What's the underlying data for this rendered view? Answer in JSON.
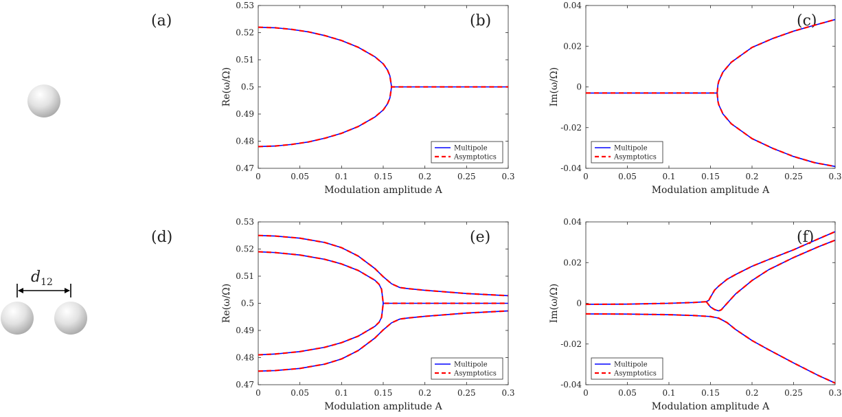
{
  "figure": {
    "panel_labels": {
      "a": "(a)",
      "d": "(d)"
    },
    "separation_label": {
      "main": "d",
      "sub": "12"
    },
    "colors": {
      "multipole": "#0000ff",
      "asymptotics": "#ff0000",
      "sphere": "#cfcfcf"
    }
  },
  "chart_data": [
    {
      "id": "b",
      "type": "line",
      "panel_label": "(b)",
      "xlabel": "Modulation amplitude A",
      "ylabel": "Re(ω/Ω)",
      "xlim": [
        0,
        0.3
      ],
      "ylim": [
        0.47,
        0.53
      ],
      "xticks": [
        0,
        0.05,
        0.1,
        0.15,
        0.2,
        0.25,
        0.3
      ],
      "xtick_labels": [
        "0",
        "0.05",
        "0.1",
        "0.15",
        "0.2",
        "0.25",
        "0.3"
      ],
      "yticks": [
        0.47,
        0.48,
        0.49,
        0.5,
        0.51,
        0.52,
        0.53
      ],
      "ytick_labels": [
        "0.47",
        "0.48",
        "0.49",
        "0.5",
        "0.51",
        "0.52",
        "0.53"
      ],
      "legend": {
        "position": "bottom-right",
        "entries": [
          "Multipole",
          "Asymptotics"
        ]
      },
      "series": [
        {
          "name": "Multipole",
          "style": "solid",
          "x": [
            0,
            0.02,
            0.04,
            0.06,
            0.08,
            0.1,
            0.12,
            0.14,
            0.15,
            0.155,
            0.158,
            0.16,
            0.2,
            0.25,
            0.3
          ],
          "y": [
            0.522,
            0.5218,
            0.5212,
            0.5203,
            0.5189,
            0.5171,
            0.5146,
            0.5111,
            0.5085,
            0.5063,
            0.5041,
            0.5,
            0.5,
            0.5,
            0.5
          ]
        },
        {
          "name": "Multipole",
          "style": "solid",
          "x": [
            0,
            0.02,
            0.04,
            0.06,
            0.08,
            0.1,
            0.12,
            0.14,
            0.15,
            0.155,
            0.158,
            0.16
          ],
          "y": [
            0.478,
            0.4782,
            0.4788,
            0.4797,
            0.4811,
            0.4829,
            0.4854,
            0.4889,
            0.4915,
            0.4937,
            0.4959,
            0.5
          ]
        }
      ]
    },
    {
      "id": "c",
      "type": "line",
      "panel_label": "(c)",
      "xlabel": "Modulation amplitude A",
      "ylabel": "Im(ω/Ω)",
      "xlim": [
        0,
        0.3
      ],
      "ylim": [
        -0.04,
        0.04
      ],
      "xticks": [
        0,
        0.05,
        0.1,
        0.15,
        0.2,
        0.25,
        0.3
      ],
      "xtick_labels": [
        "0",
        "0.05",
        "0.1",
        "0.15",
        "0.2",
        "0.25",
        "0.3"
      ],
      "yticks": [
        -0.04,
        -0.02,
        0,
        0.02,
        0.04
      ],
      "ytick_labels": [
        "-0.04",
        "-0.02",
        "0",
        "0.02",
        "0.04"
      ],
      "legend": {
        "position": "bottom-left",
        "entries": [
          "Multipole",
          "Asymptotics"
        ]
      },
      "series": [
        {
          "name": "Multipole",
          "style": "solid",
          "x": [
            0,
            0.05,
            0.1,
            0.15,
            0.158,
            0.159,
            0.16,
            0.165,
            0.175,
            0.2,
            0.225,
            0.25,
            0.275,
            0.3
          ],
          "y": [
            -0.003,
            -0.003,
            -0.003,
            -0.003,
            -0.003,
            0.0011,
            0.0028,
            0.0073,
            0.0121,
            0.0194,
            0.0238,
            0.0274,
            0.0303,
            0.0331
          ]
        },
        {
          "name": "Multipole",
          "style": "solid",
          "x": [
            0.158,
            0.159,
            0.16,
            0.165,
            0.175,
            0.2,
            0.225,
            0.25,
            0.275,
            0.3
          ],
          "y": [
            -0.003,
            -0.0071,
            -0.0088,
            -0.0133,
            -0.0181,
            -0.0254,
            -0.0302,
            -0.0342,
            -0.0372,
            -0.0391
          ]
        }
      ]
    },
    {
      "id": "e",
      "type": "line",
      "panel_label": "(e)",
      "xlabel": "Modulation amplitude A",
      "ylabel": "Re(ω/Ω)",
      "xlim": [
        0,
        0.3
      ],
      "ylim": [
        0.47,
        0.53
      ],
      "xticks": [
        0,
        0.05,
        0.1,
        0.15,
        0.2,
        0.25,
        0.3
      ],
      "xtick_labels": [
        "0",
        "0.05",
        "0.1",
        "0.15",
        "0.2",
        "0.25",
        "0.3"
      ],
      "yticks": [
        0.47,
        0.48,
        0.49,
        0.5,
        0.51,
        0.52,
        0.53
      ],
      "ytick_labels": [
        "0.47",
        "0.48",
        "0.49",
        "0.5",
        "0.51",
        "0.52",
        "0.53"
      ],
      "legend": {
        "position": "bottom-right",
        "entries": [
          "Multipole",
          "Asymptotics"
        ]
      },
      "series": [
        {
          "name": "Multipole",
          "style": "solid",
          "x": [
            0,
            0.02,
            0.05,
            0.08,
            0.1,
            0.12,
            0.14,
            0.15,
            0.16,
            0.17,
            0.18,
            0.2,
            0.25,
            0.3
          ],
          "y": [
            0.525,
            0.5248,
            0.524,
            0.5224,
            0.5205,
            0.5174,
            0.5128,
            0.5098,
            0.5072,
            0.5058,
            0.5054,
            0.5048,
            0.5036,
            0.5028
          ]
        },
        {
          "name": "Multipole",
          "style": "solid",
          "x": [
            0,
            0.02,
            0.05,
            0.08,
            0.1,
            0.12,
            0.14,
            0.145,
            0.148,
            0.15,
            0.2,
            0.25,
            0.3
          ],
          "y": [
            0.519,
            0.5187,
            0.5178,
            0.5162,
            0.5145,
            0.5121,
            0.5085,
            0.507,
            0.5052,
            0.5,
            0.5,
            0.5,
            0.5
          ]
        },
        {
          "name": "Multipole",
          "style": "solid",
          "x": [
            0,
            0.02,
            0.05,
            0.08,
            0.1,
            0.12,
            0.14,
            0.145,
            0.148,
            0.15
          ],
          "y": [
            0.481,
            0.4813,
            0.4822,
            0.4838,
            0.4855,
            0.4879,
            0.4915,
            0.493,
            0.4948,
            0.5
          ]
        },
        {
          "name": "Multipole",
          "style": "solid",
          "x": [
            0,
            0.02,
            0.05,
            0.08,
            0.1,
            0.12,
            0.14,
            0.15,
            0.16,
            0.17,
            0.18,
            0.2,
            0.25,
            0.3
          ],
          "y": [
            0.475,
            0.4752,
            0.476,
            0.4776,
            0.4795,
            0.4826,
            0.4872,
            0.4902,
            0.4928,
            0.4942,
            0.4946,
            0.4952,
            0.4964,
            0.4972
          ]
        }
      ]
    },
    {
      "id": "f",
      "type": "line",
      "panel_label": "(f)",
      "xlabel": "Modulation amplitude A",
      "ylabel": "Im(ω/Ω)",
      "xlim": [
        0,
        0.3
      ],
      "ylim": [
        -0.04,
        0.04
      ],
      "xticks": [
        0,
        0.05,
        0.1,
        0.15,
        0.2,
        0.25,
        0.3
      ],
      "xtick_labels": [
        "0",
        "0.05",
        "0.1",
        "0.15",
        "0.2",
        "0.25",
        "0.3"
      ],
      "yticks": [
        -0.04,
        -0.02,
        0,
        0.02,
        0.04
      ],
      "ytick_labels": [
        "-0.04",
        "-0.02",
        "0",
        "0.02",
        "0.04"
      ],
      "legend": {
        "position": "bottom-left",
        "entries": [
          "Multipole",
          "Asymptotics"
        ]
      },
      "series": [
        {
          "name": "Multipole",
          "style": "solid",
          "x": [
            0,
            0.05,
            0.1,
            0.13,
            0.145,
            0.148,
            0.15,
            0.155,
            0.16,
            0.17,
            0.18,
            0.2,
            0.22,
            0.25,
            0.28,
            0.3
          ],
          "y": [
            -0.0005,
            -0.0004,
            0.0,
            0.0004,
            0.0008,
            0.0015,
            0.003,
            0.0065,
            0.0085,
            0.0118,
            0.0141,
            0.0182,
            0.0215,
            0.0263,
            0.0317,
            0.0352
          ]
        },
        {
          "name": "Multipole",
          "style": "solid",
          "x": [
            0.145,
            0.148,
            0.15,
            0.155,
            0.16,
            0.163,
            0.166,
            0.17,
            0.18,
            0.2,
            0.22,
            0.25,
            0.28,
            0.3
          ],
          "y": [
            0.0008,
            -0.0008,
            -0.0018,
            -0.0031,
            -0.0037,
            -0.0032,
            -0.0018,
            0.0,
            0.0045,
            0.0112,
            0.0165,
            0.0225,
            0.0278,
            0.031
          ]
        },
        {
          "name": "Multipole",
          "style": "solid",
          "x": [
            0,
            0.05,
            0.1,
            0.13,
            0.15,
            0.16,
            0.17,
            0.18,
            0.2,
            0.22,
            0.25,
            0.28,
            0.3
          ],
          "y": [
            -0.0052,
            -0.0053,
            -0.0056,
            -0.006,
            -0.0065,
            -0.0073,
            -0.0095,
            -0.0128,
            -0.0183,
            -0.0228,
            -0.0293,
            -0.0355,
            -0.0392
          ]
        }
      ]
    }
  ]
}
